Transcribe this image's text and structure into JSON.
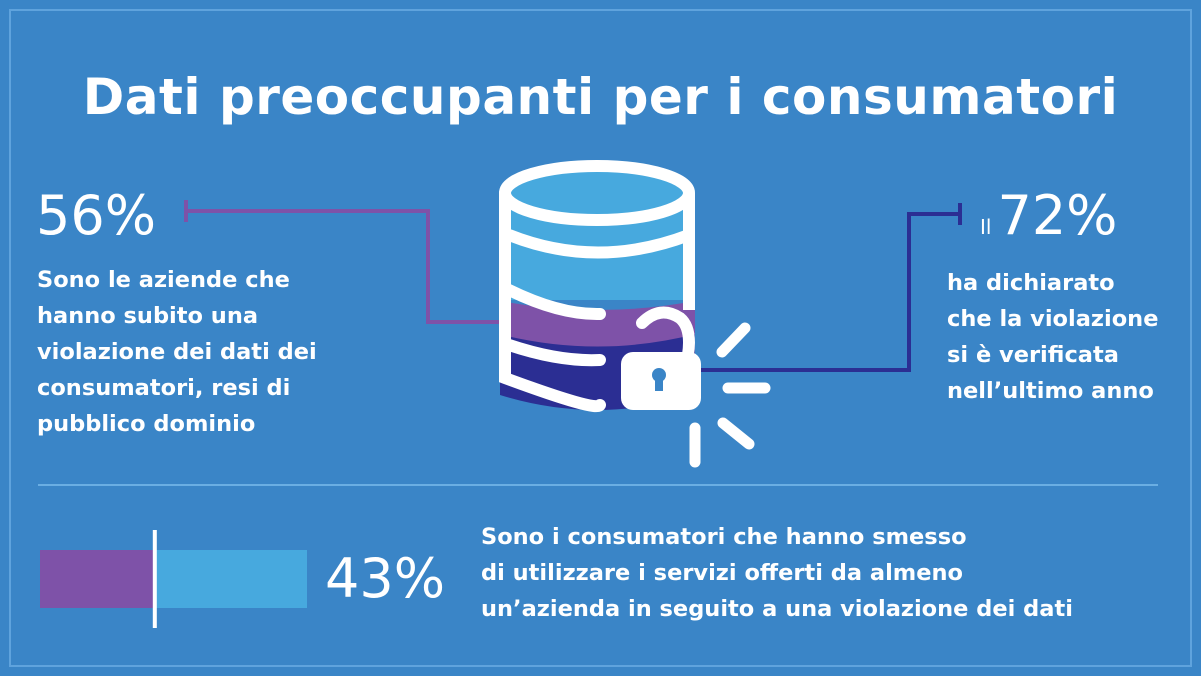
{
  "title": "Dati preoccupanti per i consumatori",
  "stat_left": {
    "value": "56%",
    "text_lines": [
      "Sono le aziende che",
      "hanno subito una",
      "violazione dei dati dei",
      "consumatori, resi di",
      "pubblico dominio"
    ]
  },
  "stat_right": {
    "prefix": "Il",
    "value": "72%",
    "text_lines": [
      "ha dichiarato",
      "che la violazione",
      "si è verificata",
      "nell’ultimo anno"
    ]
  },
  "stat_bottom": {
    "value": "43%",
    "bar_fill_percent": 43,
    "text_lines": [
      "Sono i consumatori che hanno smesso",
      "di utilizzare i servizi offerti da almeno",
      "un’azienda in seguito a una violazione dei dati"
    ]
  },
  "icons": [
    "database-icon",
    "unlocked-padlock-icon",
    "break-burst-icon"
  ],
  "colors": {
    "background": "#3a85c7",
    "purple": "#7e52a8",
    "dark_blue": "#2b2e93",
    "light_blue": "#47a9de"
  }
}
